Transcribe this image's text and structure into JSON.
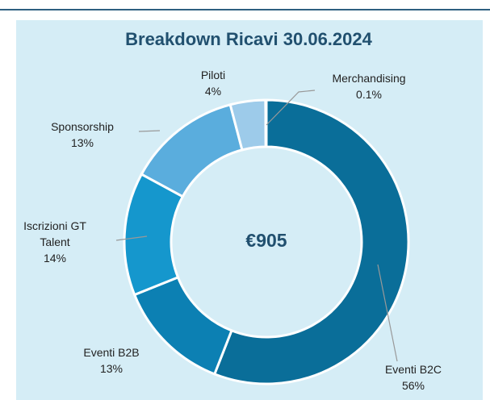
{
  "chart_data": {
    "type": "donut",
    "title": "Breakdown Ricavi 30.06.2024",
    "center_label": "€905",
    "categories": [
      "Eventi B2C",
      "Eventi B2B",
      "Iscrizioni GT Talent",
      "Sponsorship",
      "Piloti",
      "Merchandising"
    ],
    "values": [
      56,
      13,
      14,
      13,
      4,
      0.1
    ],
    "value_labels": [
      "56%",
      "13%",
      "14%",
      "13%",
      "4%",
      "0.1%"
    ],
    "colors": [
      "#0a6e99",
      "#0c80b3",
      "#1597cd",
      "#5aaddd",
      "#9dcbea",
      "#c7e3f3"
    ]
  }
}
